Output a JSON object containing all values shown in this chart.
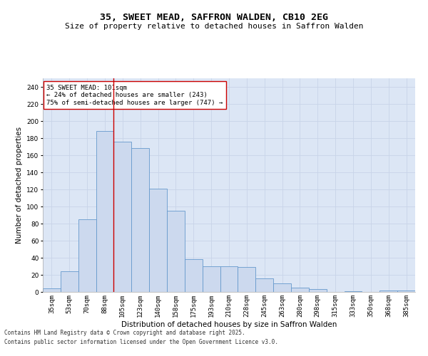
{
  "title_line1": "35, SWEET MEAD, SAFFRON WALDEN, CB10 2EG",
  "title_line2": "Size of property relative to detached houses in Saffron Walden",
  "xlabel": "Distribution of detached houses by size in Saffron Walden",
  "ylabel": "Number of detached properties",
  "categories": [
    "35sqm",
    "53sqm",
    "70sqm",
    "88sqm",
    "105sqm",
    "123sqm",
    "140sqm",
    "158sqm",
    "175sqm",
    "193sqm",
    "210sqm",
    "228sqm",
    "245sqm",
    "263sqm",
    "280sqm",
    "298sqm",
    "315sqm",
    "333sqm",
    "350sqm",
    "368sqm",
    "385sqm"
  ],
  "values": [
    4,
    24,
    85,
    188,
    176,
    168,
    121,
    95,
    38,
    30,
    30,
    29,
    16,
    10,
    5,
    3,
    0,
    1,
    0,
    2,
    2
  ],
  "bar_color": "#ccd9ee",
  "bar_edge_color": "#6699cc",
  "vline_x": 3.5,
  "vline_color": "#cc0000",
  "annotation_text": "35 SWEET MEAD: 101sqm\n← 24% of detached houses are smaller (243)\n75% of semi-detached houses are larger (747) →",
  "annotation_box_color": "#ffffff",
  "annotation_box_edge": "#cc0000",
  "ylim": [
    0,
    250
  ],
  "yticks": [
    0,
    20,
    40,
    60,
    80,
    100,
    120,
    140,
    160,
    180,
    200,
    220,
    240
  ],
  "grid_color": "#c8d4e8",
  "bg_color": "#dce6f5",
  "footer_line1": "Contains HM Land Registry data © Crown copyright and database right 2025.",
  "footer_line2": "Contains public sector information licensed under the Open Government Licence v3.0.",
  "title_fontsize": 9.5,
  "subtitle_fontsize": 8,
  "axis_label_fontsize": 7.5,
  "tick_fontsize": 6.5,
  "annotation_fontsize": 6.5,
  "footer_fontsize": 5.5
}
